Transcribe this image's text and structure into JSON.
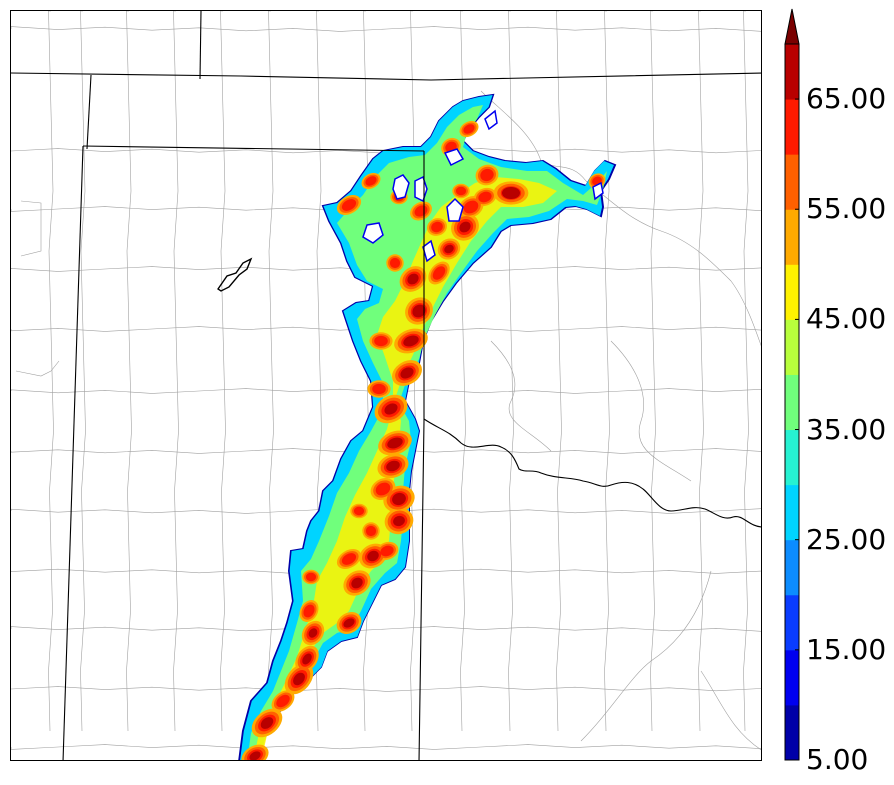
{
  "map": {
    "type": "filled-contour-radar-reflectivity",
    "colormap": "jet",
    "land_color": "#ffffff",
    "boundary_color": "#000000",
    "county_line_color": "#9a9a9a"
  },
  "colorbar": {
    "min": 5,
    "max": 70,
    "step": 5,
    "extend": "max",
    "levels": [
      5,
      10,
      15,
      20,
      25,
      30,
      35,
      40,
      45,
      50,
      55,
      60,
      65,
      70
    ],
    "colors": [
      "#0000a8",
      "#0000f0",
      "#0a3cff",
      "#0c8cff",
      "#00d4ff",
      "#26f2d2",
      "#70ff7c",
      "#b8ff3c",
      "#fff200",
      "#ffaa00",
      "#ff6000",
      "#ff1a00",
      "#b80000",
      "#7a0000"
    ],
    "tick_labels": [
      {
        "value": 5,
        "text": "5.00"
      },
      {
        "value": 15,
        "text": "15.00"
      },
      {
        "value": 25,
        "text": "25.00"
      },
      {
        "value": 35,
        "text": "35.00"
      },
      {
        "value": 45,
        "text": "45.00"
      },
      {
        "value": 55,
        "text": "55.00"
      },
      {
        "value": 65,
        "text": "65.00"
      }
    ]
  }
}
